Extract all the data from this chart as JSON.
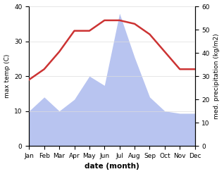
{
  "months": [
    "Jan",
    "Feb",
    "Mar",
    "Apr",
    "May",
    "Jun",
    "Jul",
    "Aug",
    "Sep",
    "Oct",
    "Nov",
    "Dec"
  ],
  "temperature": [
    19,
    22,
    27,
    33,
    33,
    36,
    36,
    35,
    32,
    27,
    22,
    22
  ],
  "precipitation": [
    15,
    21,
    15,
    20,
    30,
    26,
    57,
    38,
    21,
    15,
    14,
    14
  ],
  "temp_color": "#cc3333",
  "precip_fill_color": "#b8c4f0",
  "temp_ylim": [
    0,
    40
  ],
  "precip_ylim": [
    0,
    60
  ],
  "temp_yticks": [
    0,
    10,
    20,
    30,
    40
  ],
  "precip_yticks": [
    0,
    10,
    20,
    30,
    40,
    50,
    60
  ],
  "xlabel": "date (month)",
  "ylabel_left": "max temp (C)",
  "ylabel_right": "med. precipitation (kg/m2)",
  "background_color": "#ffffff"
}
